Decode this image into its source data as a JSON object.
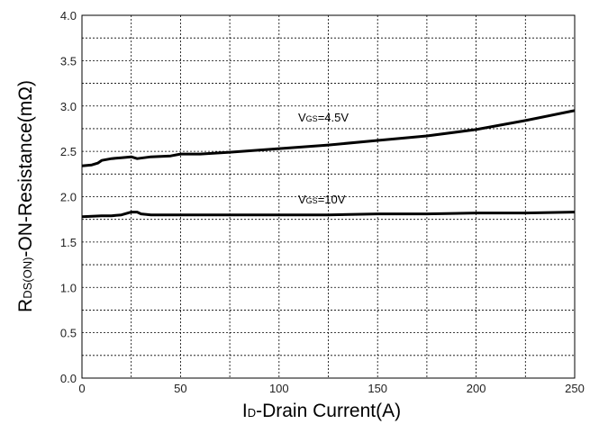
{
  "chart_data": {
    "type": "line",
    "xlabel": {
      "main": "I",
      "sub": "D",
      "rest": "-Drain Current(A)"
    },
    "ylabel": {
      "main": "R",
      "sub": "DS(ON)",
      "rest": "-ON-Resistance(mΩ)"
    },
    "xlim": [
      0,
      250
    ],
    "ylim": [
      0,
      4.0
    ],
    "x_ticks": [
      0,
      50,
      100,
      150,
      200,
      250
    ],
    "x_tick_labels": [
      "0",
      "50",
      "100",
      "150",
      "200",
      "250"
    ],
    "y_ticks": [
      0,
      0.5,
      1.0,
      1.5,
      2.0,
      2.5,
      3.0,
      3.5,
      4.0
    ],
    "y_tick_labels": [
      "0.0",
      "0.5",
      "1.0",
      "1.5",
      "2.0",
      "2.5",
      "3.0",
      "3.5",
      "4.0"
    ],
    "grid": true,
    "series": [
      {
        "name": "VGS=4.5V",
        "label": {
          "main": "V",
          "sub": "GS",
          "rest": "=4.5V"
        },
        "x": [
          0,
          5,
          8,
          10,
          15,
          20,
          25,
          28,
          35,
          45,
          50,
          60,
          75,
          100,
          125,
          150,
          175,
          200,
          225,
          250
        ],
        "y": [
          2.34,
          2.35,
          2.37,
          2.4,
          2.42,
          2.43,
          2.44,
          2.42,
          2.44,
          2.45,
          2.47,
          2.47,
          2.49,
          2.53,
          2.57,
          2.62,
          2.67,
          2.74,
          2.84,
          2.95
        ]
      },
      {
        "name": "VGS=10V",
        "label": {
          "main": "V",
          "sub": "GS",
          "rest": "=10V"
        },
        "x": [
          0,
          10,
          15,
          20,
          25,
          28,
          30,
          35,
          50,
          75,
          100,
          125,
          150,
          175,
          200,
          225,
          250
        ],
        "y": [
          1.78,
          1.79,
          1.79,
          1.8,
          1.83,
          1.83,
          1.81,
          1.8,
          1.8,
          1.8,
          1.8,
          1.8,
          1.81,
          1.81,
          1.82,
          1.82,
          1.83
        ]
      }
    ]
  },
  "styles": {
    "line_color": "#000000",
    "grid_color": "#000000",
    "frame_color": "#000000",
    "background": "#ffffff"
  }
}
